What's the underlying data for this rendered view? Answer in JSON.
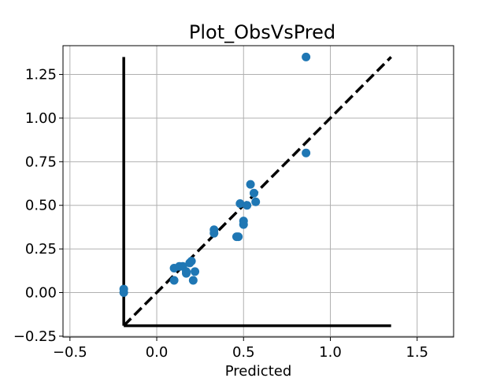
{
  "chart_data": {
    "type": "scatter",
    "title": "Plot_ObsVsPred",
    "xlabel": "Predicted",
    "ylabel": "",
    "xlim": [
      -0.54,
      1.71
    ],
    "ylim": [
      -0.255,
      1.415
    ],
    "grid": true,
    "legend": "none",
    "x_ticks": [
      -0.5,
      0.0,
      0.5,
      1.0,
      1.5
    ],
    "x_tick_labels": [
      "−0.5",
      "0.0",
      "0.5",
      "1.0",
      "1.5"
    ],
    "y_ticks": [
      -0.25,
      0.0,
      0.25,
      0.5,
      0.75,
      1.0,
      1.25
    ],
    "y_tick_labels": [
      "−0.25",
      "0.00",
      "0.25",
      "0.50",
      "0.75",
      "1.00",
      "1.25"
    ],
    "points": {
      "x": [
        -0.19,
        -0.19,
        0.1,
        0.1,
        0.13,
        0.15,
        0.17,
        0.17,
        0.19,
        0.2,
        0.21,
        0.22,
        0.33,
        0.33,
        0.46,
        0.47,
        0.48,
        0.5,
        0.5,
        0.52,
        0.54,
        0.56,
        0.57,
        0.86,
        0.86
      ],
      "y": [
        0.02,
        0.0,
        0.14,
        0.07,
        0.15,
        0.15,
        0.11,
        0.12,
        0.17,
        0.18,
        0.07,
        0.12,
        0.36,
        0.34,
        0.32,
        0.32,
        0.51,
        0.41,
        0.39,
        0.5,
        0.62,
        0.57,
        0.52,
        1.35,
        0.8
      ],
      "color": "#1f77b4"
    },
    "reference_line": {
      "x": [
        -0.19,
        1.35
      ],
      "y": [
        -0.19,
        1.35
      ],
      "style": "dashed",
      "color": "#000000"
    },
    "bracket_lines": {
      "vertical": {
        "x": [
          -0.19,
          -0.19
        ],
        "y": [
          -0.19,
          1.35
        ]
      },
      "horizontal": {
        "x": [
          -0.19,
          1.35
        ],
        "y": [
          -0.19,
          -0.19
        ]
      },
      "color": "#000000"
    },
    "colors": {
      "grid": "#b0b0b0",
      "frame": "#000000"
    }
  }
}
